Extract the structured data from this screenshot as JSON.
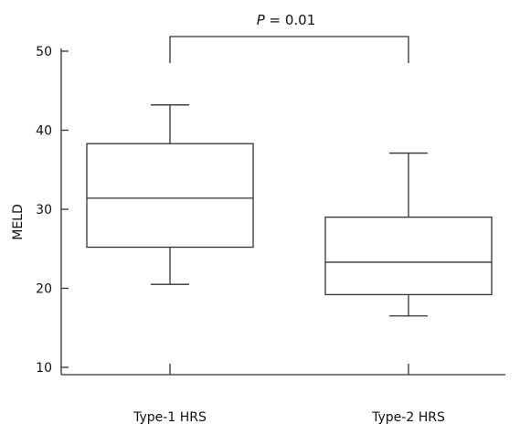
{
  "chart_data": {
    "type": "box",
    "title": "",
    "xlabel": "",
    "ylabel": "MELD",
    "ylim": [
      5,
      50
    ],
    "yticks": [
      10,
      20,
      30,
      40,
      50
    ],
    "categories": [
      "Type-1 HRS",
      "Type-2 HRS"
    ],
    "boxes": [
      {
        "label": "Type-1 HRS",
        "whisker_low": 20.5,
        "q1": 25.2,
        "median": 31.4,
        "q3": 38.3,
        "whisker_high": 43.2
      },
      {
        "label": "Type-2 HRS",
        "whisker_low": 16.5,
        "q1": 19.2,
        "median": 23.3,
        "q3": 29.0,
        "whisker_high": 37.1
      }
    ],
    "annotation": {
      "p_symbol": "P",
      "p_text": " = 0.01",
      "comparison": [
        "Type-1 HRS",
        "Type-2 HRS"
      ]
    },
    "grid": false,
    "colors": {
      "stroke": "#333333",
      "fill": "#ffffff"
    }
  }
}
